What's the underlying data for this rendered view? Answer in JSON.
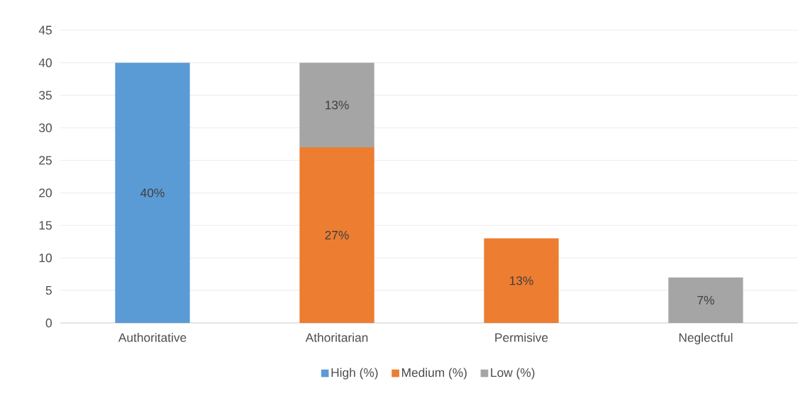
{
  "chart_data": {
    "type": "bar",
    "stacked": true,
    "categories": [
      "Authoritative",
      "Athoritarian",
      "Permisive",
      "Neglectful"
    ],
    "series": [
      {
        "name": "High (%)",
        "color": "#5b9bd5",
        "values": [
          40,
          null,
          null,
          null
        ],
        "value_labels": [
          "40%",
          null,
          null,
          null
        ]
      },
      {
        "name": "Medium (%)",
        "color": "#ed7d31",
        "values": [
          null,
          27,
          13,
          null
        ],
        "value_labels": [
          null,
          "27%",
          "13%",
          null
        ]
      },
      {
        "name": "Low (%)",
        "color": "#a5a5a5",
        "values": [
          null,
          13,
          null,
          7
        ],
        "value_labels": [
          null,
          "13%",
          null,
          "7%"
        ]
      }
    ],
    "ylim": [
      0,
      45
    ],
    "yticks": [
      0,
      5,
      10,
      15,
      20,
      25,
      30,
      35,
      40,
      45
    ],
    "grid": "y",
    "legend": "bottom"
  }
}
